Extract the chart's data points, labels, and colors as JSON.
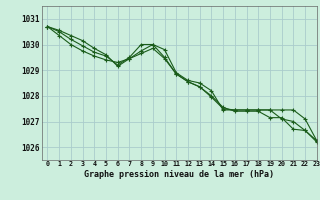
{
  "title": "Graphe pression niveau de la mer (hPa)",
  "bg_color": "#cceedd",
  "grid_color": "#aacccc",
  "line_color": "#1a5c1a",
  "xlim": [
    -0.5,
    23
  ],
  "ylim": [
    1025.5,
    1031.5
  ],
  "yticks": [
    1026,
    1027,
    1028,
    1029,
    1030,
    1031
  ],
  "xticks": [
    0,
    1,
    2,
    3,
    4,
    5,
    6,
    7,
    8,
    9,
    10,
    11,
    12,
    13,
    14,
    15,
    16,
    17,
    18,
    19,
    20,
    21,
    22,
    23
  ],
  "series": [
    [
      1030.7,
      1030.55,
      1030.35,
      1030.15,
      1029.85,
      1029.6,
      1029.15,
      1029.45,
      1029.75,
      1030.0,
      1029.8,
      1028.9,
      1028.6,
      1028.5,
      1028.2,
      1027.45,
      1027.45,
      1027.45,
      1027.45,
      1027.45,
      1027.1,
      1027.0,
      1026.65,
      1026.25
    ],
    [
      1030.7,
      1030.5,
      1030.2,
      1029.95,
      1029.7,
      1029.55,
      1029.2,
      1029.5,
      1030.0,
      1030.0,
      1029.5,
      1028.85,
      1028.55,
      1028.35,
      1028.0,
      1027.55,
      1027.4,
      1027.4,
      1027.4,
      1027.15,
      1027.15,
      1026.7,
      1026.65,
      1026.2
    ],
    [
      1030.7,
      1030.35,
      1030.0,
      1029.75,
      1029.55,
      1029.4,
      1029.3,
      1029.45,
      1029.65,
      1029.85,
      1029.45,
      1028.85,
      1028.55,
      1028.35,
      1027.95,
      1027.5,
      1027.45,
      1027.45,
      1027.45,
      1027.45,
      1027.45,
      1027.45,
      1027.1,
      1026.25
    ]
  ],
  "xlabel_fontsize": 6.0,
  "ytick_fontsize": 5.5,
  "xtick_fontsize": 4.8
}
